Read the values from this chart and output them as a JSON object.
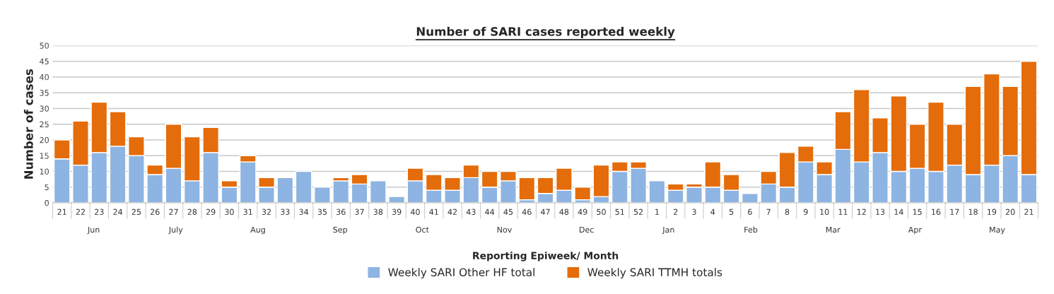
{
  "chart_data": {
    "type": "bar",
    "title": "Number of SARI cases reported weekly",
    "xlabel": "Reporting Epiweek/ Month",
    "ylabel": "Number of cases",
    "categories": [
      "21",
      "22",
      "23",
      "24",
      "25",
      "26",
      "27",
      "28",
      "29",
      "30",
      "31",
      "32",
      "33",
      "34",
      "35",
      "36",
      "37",
      "38",
      "39",
      "40",
      "41",
      "42",
      "43",
      "44",
      "45",
      "46",
      "47",
      "48",
      "49",
      "50",
      "51",
      "52",
      "1",
      "2",
      "3",
      "4",
      "5",
      "6",
      "7",
      "8",
      "9",
      "10",
      "11",
      "12",
      "13",
      "14",
      "15",
      "16",
      "17",
      "18",
      "19",
      "20",
      "21"
    ],
    "stacked": true,
    "series": [
      {
        "name": "Weekly SARI Other HF total",
        "color": "#8db4e2",
        "values": [
          14,
          12,
          16,
          18,
          15,
          9,
          11,
          7,
          16,
          5,
          13,
          5,
          8,
          10,
          5,
          7,
          6,
          7,
          2,
          7,
          4,
          4,
          8,
          5,
          7,
          1,
          3,
          4,
          1,
          2,
          10,
          11,
          7,
          4,
          5,
          5,
          4,
          3,
          6,
          5,
          13,
          9,
          17,
          13,
          16,
          10,
          11,
          10,
          12,
          9,
          12,
          15,
          9
        ]
      },
      {
        "name": "Weekly SARI TTMH totals",
        "color": "#e46c0a",
        "values": [
          6,
          14,
          16,
          11,
          6,
          3,
          14,
          14,
          8,
          2,
          2,
          3,
          null,
          null,
          null,
          1,
          3,
          null,
          null,
          4,
          5,
          4,
          4,
          5,
          3,
          7,
          5,
          7,
          4,
          10,
          3,
          2,
          null,
          2,
          1,
          8,
          5,
          null,
          4,
          11,
          5,
          4,
          12,
          23,
          11,
          24,
          14,
          22,
          13,
          28,
          29,
          22,
          36
        ]
      }
    ],
    "annotations": [
      "Jun",
      "July",
      "Aug",
      "Sep",
      "Oct",
      "Nov",
      "Dec",
      "Jan",
      "Feb",
      "Mar",
      "Apr",
      "May"
    ],
    "ylim": [
      0,
      50
    ],
    "yticks": [
      0,
      5,
      10,
      15,
      20,
      25,
      30,
      35,
      40,
      45,
      50
    ],
    "grid": "y",
    "legend": "bottom"
  }
}
